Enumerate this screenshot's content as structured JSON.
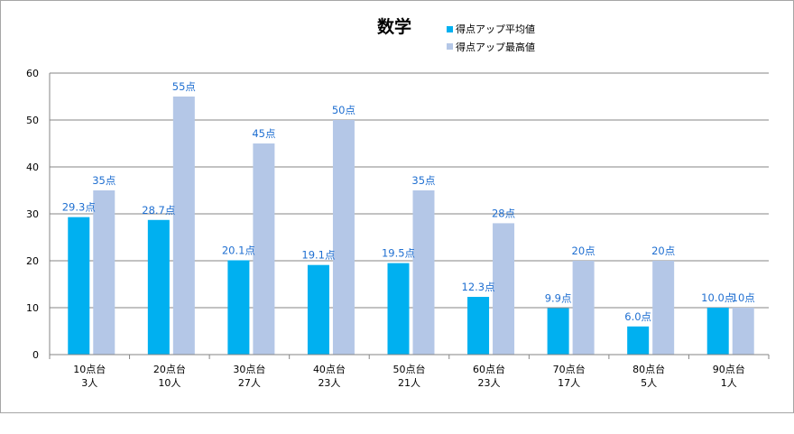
{
  "chart_data": {
    "type": "bar",
    "title": "数学",
    "categories": [
      "10点台",
      "20点台",
      "30点台",
      "40点台",
      "50点台",
      "60点台",
      "70点台",
      "80点台",
      "90点台"
    ],
    "category_counts": [
      "3人",
      "10人",
      "27人",
      "23人",
      "21人",
      "23人",
      "17人",
      "5人",
      "1人"
    ],
    "series": [
      {
        "name": "得点アップ平均値",
        "color": "#00b0f0",
        "values": [
          29.3,
          28.7,
          20.1,
          19.1,
          19.5,
          12.3,
          9.9,
          6.0,
          10.0
        ],
        "labels": [
          "29.3点",
          "28.7点",
          "20.1点",
          "19.1点",
          "19.5点",
          "12.3点",
          "9.9点",
          "6.0点",
          "10.0点"
        ]
      },
      {
        "name": "得点アップ最高値",
        "color": "#b4c7e7",
        "values": [
          35,
          55,
          45,
          50,
          35,
          28,
          20,
          20,
          10
        ],
        "labels": [
          "35点",
          "55点",
          "45点",
          "50点",
          "35点",
          "28点",
          "20点",
          "20点",
          "10点"
        ]
      }
    ],
    "ylim": [
      0,
      60
    ],
    "yticks": [
      0,
      10,
      20,
      30,
      40,
      50,
      60
    ],
    "xlabel": "",
    "ylabel": "",
    "grid": true,
    "legend_position": "top-right of title"
  }
}
